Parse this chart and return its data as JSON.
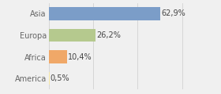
{
  "categories": [
    "Asia",
    "Europa",
    "Africa",
    "America"
  ],
  "values": [
    62.9,
    26.2,
    10.4,
    0.5
  ],
  "labels": [
    "62,9%",
    "26,2%",
    "10,4%",
    "0,5%"
  ],
  "bar_colors": [
    "#7b9dc8",
    "#b5c98e",
    "#f0a868",
    "#f5e6a3"
  ],
  "background_color": "#f0f0f0",
  "xlim": [
    0,
    82
  ],
  "bar_height": 0.6,
  "label_fontsize": 7,
  "tick_fontsize": 7
}
